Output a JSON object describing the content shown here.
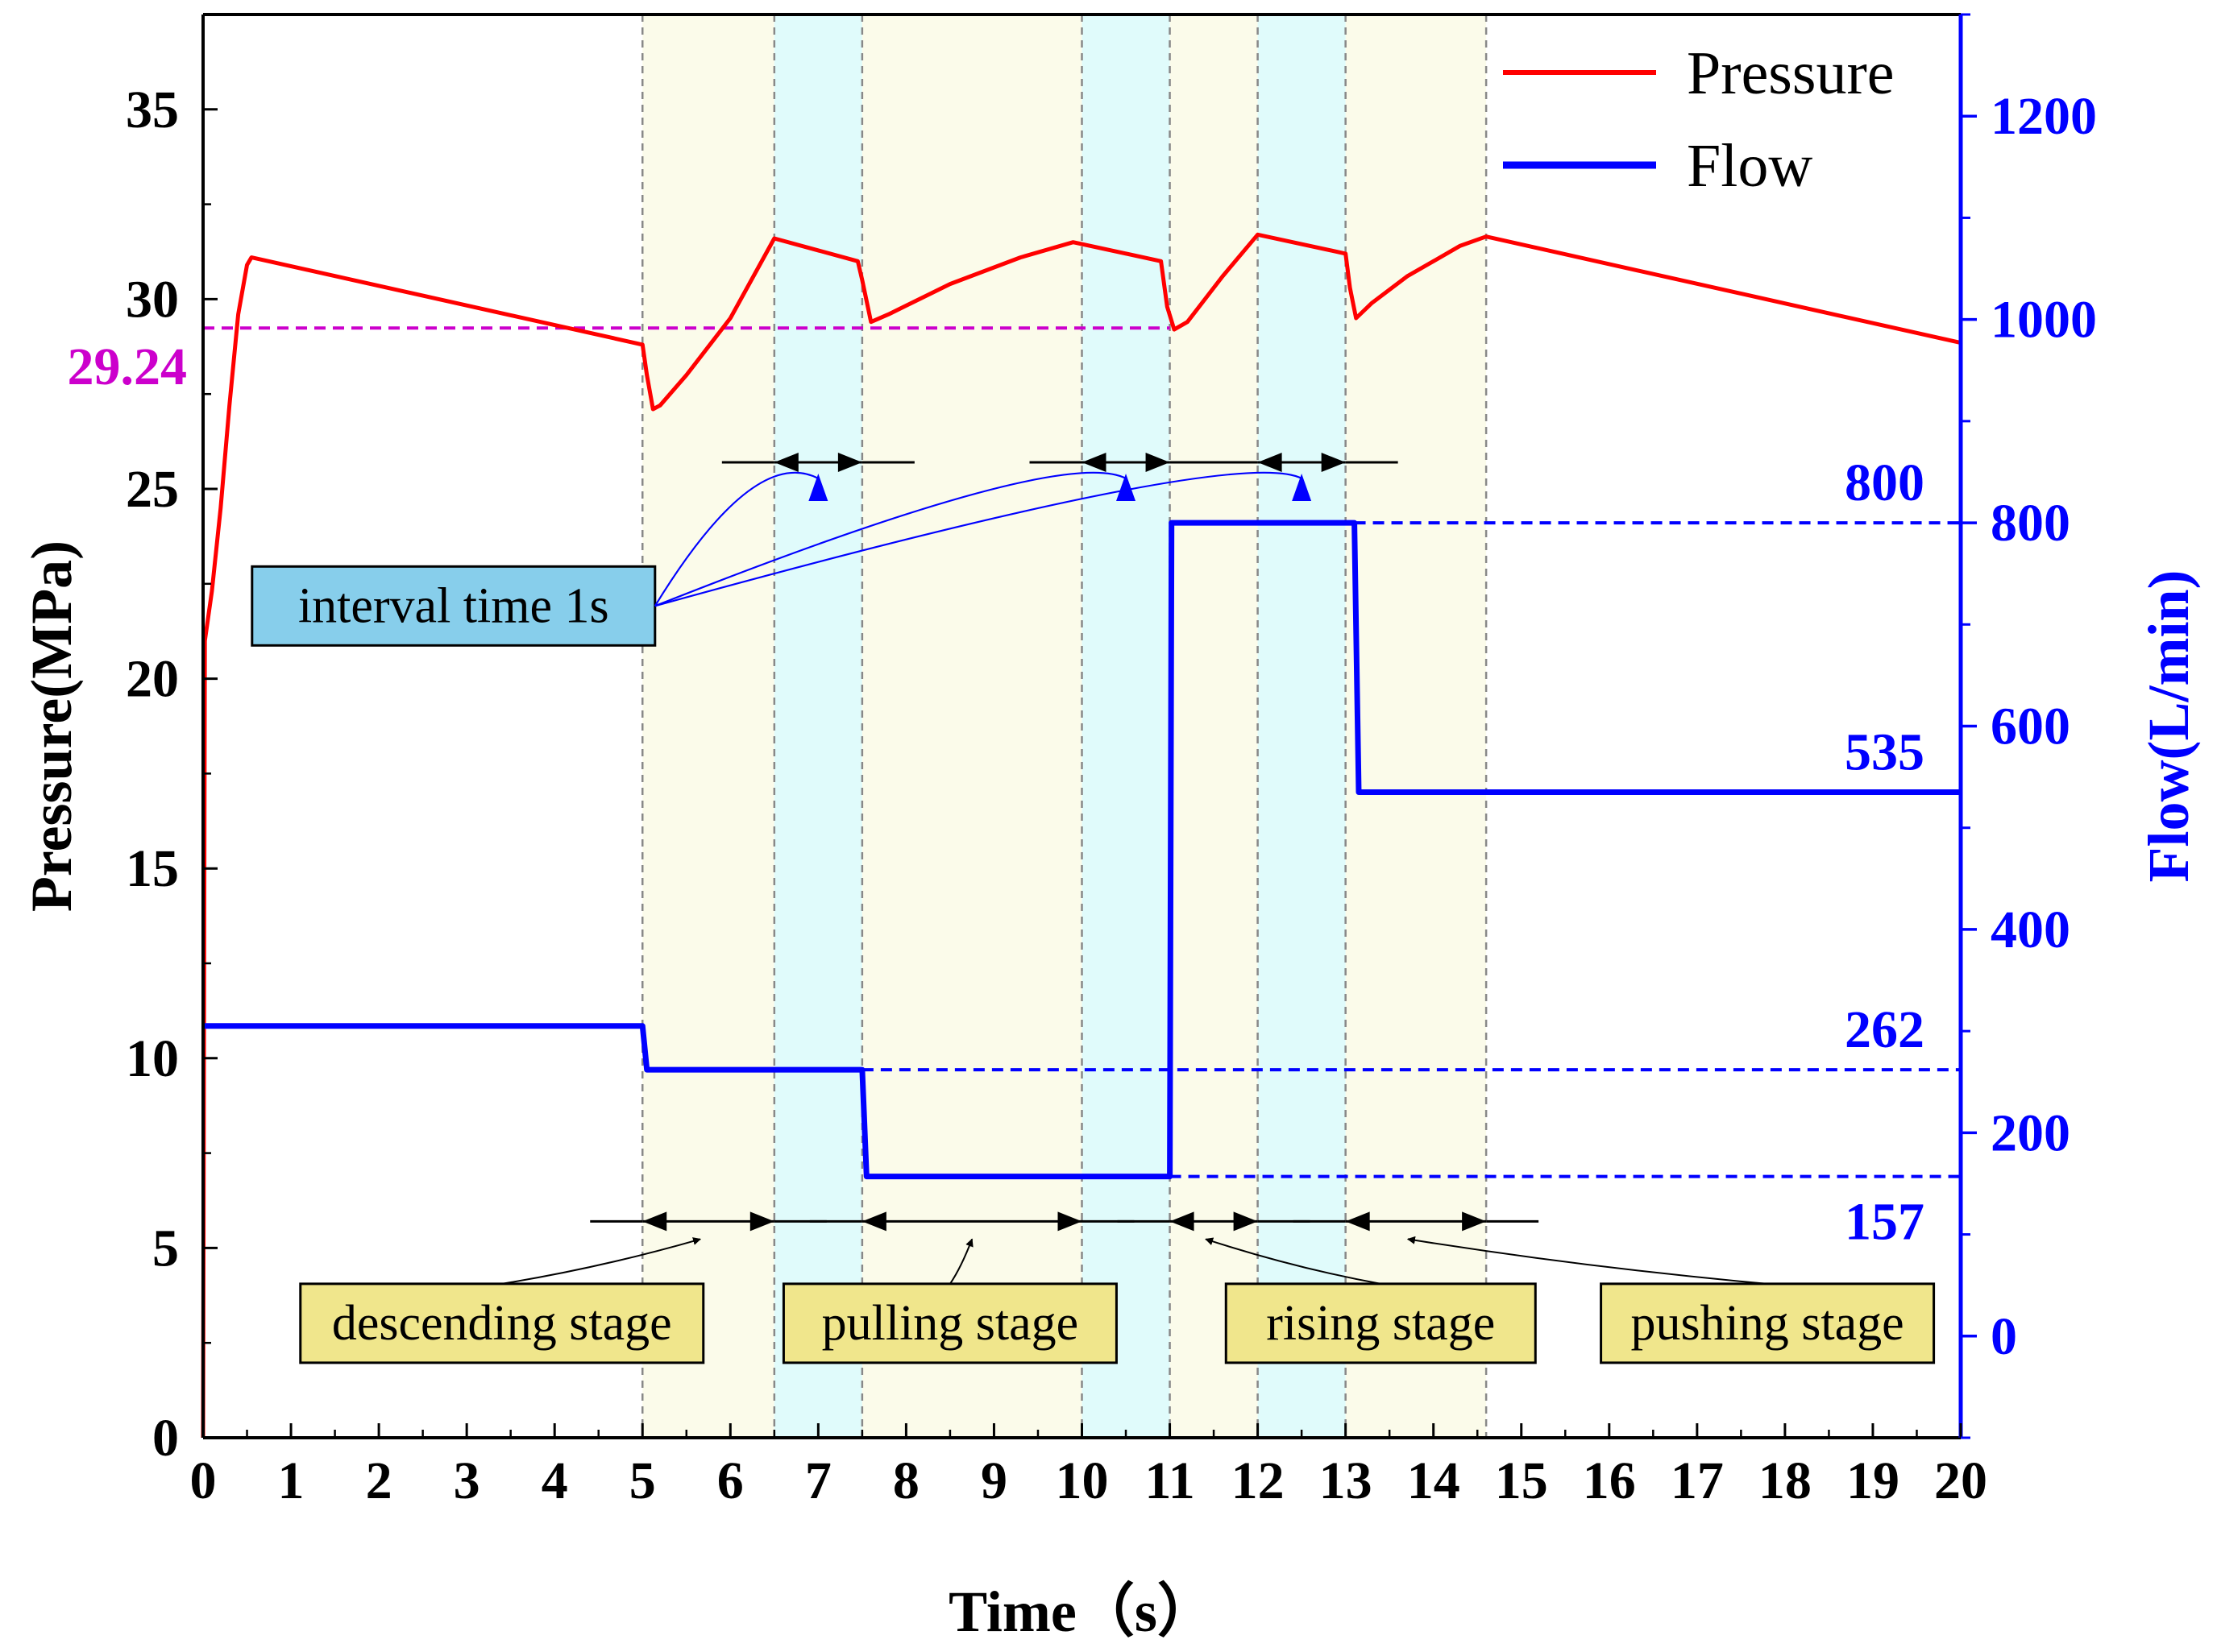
{
  "chart_data": {
    "type": "line",
    "x_axis": {
      "label": "Time（s）",
      "range": [
        0,
        20
      ],
      "ticks": [
        0,
        1,
        2,
        3,
        4,
        5,
        6,
        7,
        8,
        9,
        10,
        11,
        12,
        13,
        14,
        15,
        16,
        17,
        18,
        19,
        20
      ]
    },
    "y_left": {
      "label": "Pressure(MPa)",
      "range": [
        0,
        37.5
      ],
      "ticks": [
        0,
        5,
        10,
        15,
        20,
        25,
        30,
        35
      ],
      "color": "#000000"
    },
    "y_right": {
      "label": "Flow(L/min)",
      "range": [
        -100,
        1300
      ],
      "ticks": [
        0,
        200,
        400,
        600,
        800,
        1000,
        1200
      ],
      "color": "#0000ff"
    },
    "series": [
      {
        "name": "Pressure",
        "axis": "left",
        "color": "#ff0000",
        "points": [
          [
            0,
            0
          ],
          [
            0.02,
            21.0
          ],
          [
            0.1,
            22.3
          ],
          [
            0.2,
            24.5
          ],
          [
            0.3,
            27.2
          ],
          [
            0.4,
            29.6
          ],
          [
            0.5,
            30.9
          ],
          [
            0.55,
            31.1
          ],
          [
            5.0,
            28.8
          ],
          [
            5.05,
            28.0
          ],
          [
            5.12,
            27.1
          ],
          [
            5.2,
            27.2
          ],
          [
            5.5,
            28.0
          ],
          [
            6.0,
            29.5
          ],
          [
            6.5,
            31.6
          ],
          [
            7.45,
            31.0
          ],
          [
            7.5,
            30.5
          ],
          [
            7.6,
            29.4
          ],
          [
            7.8,
            29.6
          ],
          [
            8.5,
            30.4
          ],
          [
            9.3,
            31.1
          ],
          [
            9.9,
            31.5
          ],
          [
            10.9,
            31.0
          ],
          [
            10.97,
            29.8
          ],
          [
            11.05,
            29.2
          ],
          [
            11.2,
            29.4
          ],
          [
            11.6,
            30.6
          ],
          [
            12.0,
            31.7
          ],
          [
            13.0,
            31.2
          ],
          [
            13.05,
            30.3
          ],
          [
            13.12,
            29.5
          ],
          [
            13.3,
            29.9
          ],
          [
            13.7,
            30.6
          ],
          [
            14.0,
            31.0
          ],
          [
            14.3,
            31.4
          ],
          [
            14.6,
            31.65
          ],
          [
            20.0,
            28.85
          ]
        ]
      },
      {
        "name": "Flow",
        "axis": "right",
        "color": "#0000ff",
        "points": [
          [
            0,
            305
          ],
          [
            5.0,
            305
          ],
          [
            5.05,
            262
          ],
          [
            7.5,
            262
          ],
          [
            7.55,
            157
          ],
          [
            11.0,
            157
          ],
          [
            11.02,
            800
          ],
          [
            13.1,
            800
          ],
          [
            13.15,
            535
          ],
          [
            20.0,
            535
          ]
        ]
      }
    ],
    "legend": {
      "position": "top-right",
      "entries": [
        {
          "label": "Pressure",
          "color": "#ff0000"
        },
        {
          "label": "Flow",
          "color": "#0000ff"
        }
      ]
    },
    "reference_lines": [
      {
        "axis": "left",
        "value": 29.24,
        "label": "29.24",
        "color": "#cc00cc",
        "x_from": 0,
        "x_to": 11
      },
      {
        "axis": "right",
        "value": 800,
        "label": "800",
        "color": "#0000ff",
        "x_from": 13.1,
        "x_to": 20
      },
      {
        "axis": "right",
        "value": 262,
        "label": "262",
        "color": "#0000ff",
        "x_from": 7.5,
        "x_to": 20
      },
      {
        "axis": "right",
        "value": 157,
        "label": "157",
        "color": "#0000ff",
        "x_from": 11.0,
        "x_to": 20
      }
    ],
    "right_labels": [
      {
        "value": 800,
        "label": "800"
      },
      {
        "value": 535,
        "label": "535"
      },
      {
        "value": 262,
        "label": "262"
      },
      {
        "value": 157,
        "label": "157"
      }
    ],
    "vertical_dividers": [
      5.0,
      6.5,
      7.5,
      10.0,
      11.0,
      12.0,
      13.0,
      14.6
    ],
    "shaded_regions": [
      {
        "from": 5.0,
        "to": 6.5,
        "color": "#fbfbea"
      },
      {
        "from": 6.5,
        "to": 7.5,
        "color": "#e0fbfb"
      },
      {
        "from": 7.5,
        "to": 10.0,
        "color": "#fbfbea"
      },
      {
        "from": 10.0,
        "to": 11.0,
        "color": "#e0fbfb"
      },
      {
        "from": 11.0,
        "to": 12.0,
        "color": "#fbfbea"
      },
      {
        "from": 12.0,
        "to": 13.0,
        "color": "#e0fbfb"
      },
      {
        "from": 13.0,
        "to": 14.6,
        "color": "#fbfbea"
      }
    ],
    "stage_spans": [
      {
        "from": 5.0,
        "to": 6.5
      },
      {
        "from": 7.5,
        "to": 10.0
      },
      {
        "from": 11.0,
        "to": 12.0
      },
      {
        "from": 13.0,
        "to": 14.6
      }
    ],
    "interval_spans": [
      {
        "from": 6.5,
        "to": 7.5
      },
      {
        "from": 10.0,
        "to": 11.0
      },
      {
        "from": 12.0,
        "to": 13.0
      }
    ],
    "annotations": [
      {
        "text": "descending stage",
        "fill": "#f0e68c",
        "x": 3.4,
        "y": 1.0
      },
      {
        "text": "pulling stage",
        "fill": "#f0e68c",
        "x": 8.5,
        "y": 1.0
      },
      {
        "text": "rising stage",
        "fill": "#f0e68c",
        "x": 13.4,
        "y": 1.0
      },
      {
        "text": "pushing stage",
        "fill": "#f0e68c",
        "x": 17.8,
        "y": 1.0
      },
      {
        "text": "interval time 1s",
        "fill": "#87ceeb",
        "x": 2.85,
        "y": 19.9
      }
    ]
  }
}
